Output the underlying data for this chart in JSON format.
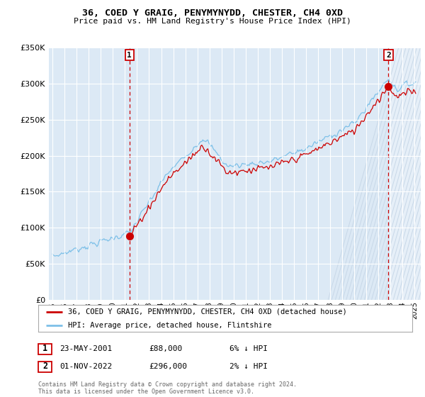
{
  "title": "36, COED Y GRAIG, PENYMYNYDD, CHESTER, CH4 0XD",
  "subtitle": "Price paid vs. HM Land Registry's House Price Index (HPI)",
  "legend_line1": "36, COED Y GRAIG, PENYMYNYDD, CHESTER, CH4 0XD (detached house)",
  "legend_line2": "HPI: Average price, detached house, Flintshire",
  "sale1_date": "23-MAY-2001",
  "sale1_price": 88000,
  "sale1_note": "6% ↓ HPI",
  "sale2_date": "01-NOV-2022",
  "sale2_price": 296000,
  "sale2_note": "2% ↓ HPI",
  "footer": "Contains HM Land Registry data © Crown copyright and database right 2024.\nThis data is licensed under the Open Government Licence v3.0.",
  "background_color": "#dce9f5",
  "hpi_color": "#7dc0e8",
  "sale_color": "#cc0000",
  "vline_color": "#cc0000",
  "marker_color": "#cc0000",
  "sale1_x_year": 2001.37,
  "sale2_x_year": 2022.83,
  "xlim_left": 1994.7,
  "xlim_right": 2025.5,
  "ylim": [
    0,
    350000
  ]
}
